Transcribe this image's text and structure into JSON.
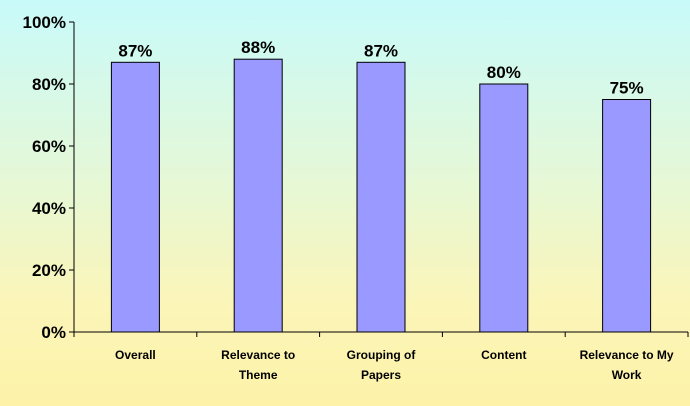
{
  "chart_data": {
    "type": "bar",
    "categories": [
      [
        "Overall"
      ],
      [
        "Relevance to",
        "Theme"
      ],
      [
        "Grouping of",
        "Papers"
      ],
      [
        "Content"
      ],
      [
        "Relevance to My",
        "Work"
      ]
    ],
    "values": [
      87,
      88,
      87,
      80,
      75
    ],
    "data_labels": [
      "87%",
      "88%",
      "87%",
      "80%",
      "75%"
    ],
    "y_ticks": [
      {
        "value": 0,
        "label": "0%"
      },
      {
        "value": 20,
        "label": "20%"
      },
      {
        "value": 40,
        "label": "40%"
      },
      {
        "value": 60,
        "label": "60%"
      },
      {
        "value": 80,
        "label": "80%"
      },
      {
        "value": 100,
        "label": "100%"
      }
    ],
    "ylim": [
      0,
      100
    ],
    "grid": false,
    "legend": "none",
    "title": "",
    "xlabel": "",
    "ylabel": "",
    "colors": {
      "bar_fill": "#9999ff",
      "bar_stroke": "#000000",
      "axis": "#000000"
    }
  }
}
